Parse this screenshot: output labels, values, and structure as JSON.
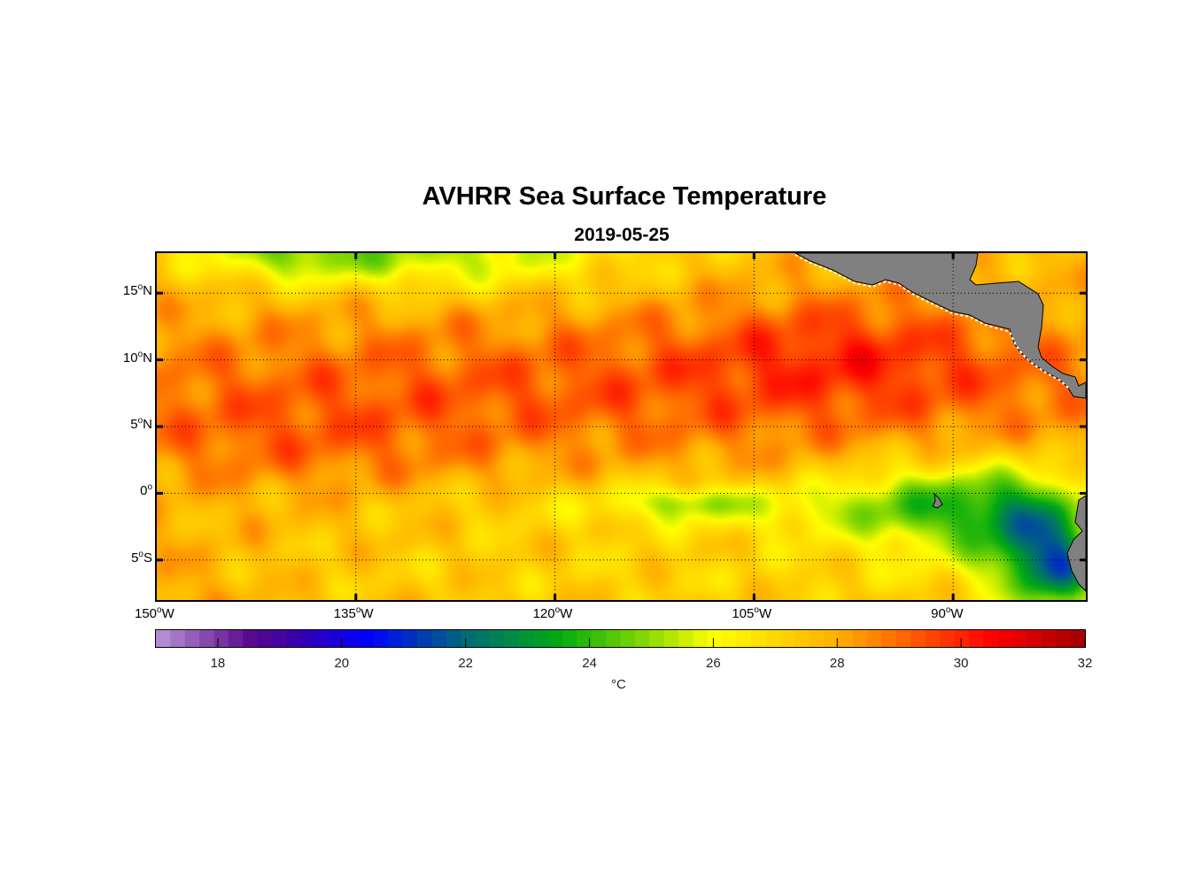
{
  "title": "AVHRR Sea Surface Temperature",
  "subtitle": "2019-05-25",
  "map": {
    "lon_range": [
      -150,
      -80
    ],
    "lat_range": [
      -8,
      18
    ],
    "lon_ticks": [
      {
        "value": -150,
        "num": "150",
        "hemi": "W"
      },
      {
        "value": -135,
        "num": "135",
        "hemi": "W"
      },
      {
        "value": -120,
        "num": "120",
        "hemi": "W"
      },
      {
        "value": -105,
        "num": "105",
        "hemi": "W"
      },
      {
        "value": -90,
        "num": "90",
        "hemi": "W"
      }
    ],
    "lat_ticks": [
      {
        "value": 15,
        "num": "15",
        "hemi": "N"
      },
      {
        "value": 10,
        "num": "10",
        "hemi": "N"
      },
      {
        "value": 5,
        "num": "5",
        "hemi": "N"
      },
      {
        "value": 0,
        "num": "0",
        "hemi": ""
      },
      {
        "value": -5,
        "num": "5",
        "hemi": "S"
      }
    ],
    "degree_symbol": "o",
    "land_color": "#808080"
  },
  "colorbar": {
    "range": [
      17,
      32
    ],
    "ticks": [
      "18",
      "20",
      "22",
      "24",
      "26",
      "28",
      "30",
      "32"
    ],
    "unit": "°C",
    "stops": [
      [
        17,
        "#b996d6"
      ],
      [
        18.5,
        "#5a0a8c"
      ],
      [
        19.2,
        "#3c00a8"
      ],
      [
        20.4,
        "#0000ff"
      ],
      [
        22,
        "#006a78"
      ],
      [
        23.5,
        "#00aa10"
      ],
      [
        25,
        "#90dc00"
      ],
      [
        26,
        "#ffff00"
      ],
      [
        28,
        "#ffb000"
      ],
      [
        30.5,
        "#ff0000"
      ],
      [
        32,
        "#a00000"
      ]
    ]
  }
}
